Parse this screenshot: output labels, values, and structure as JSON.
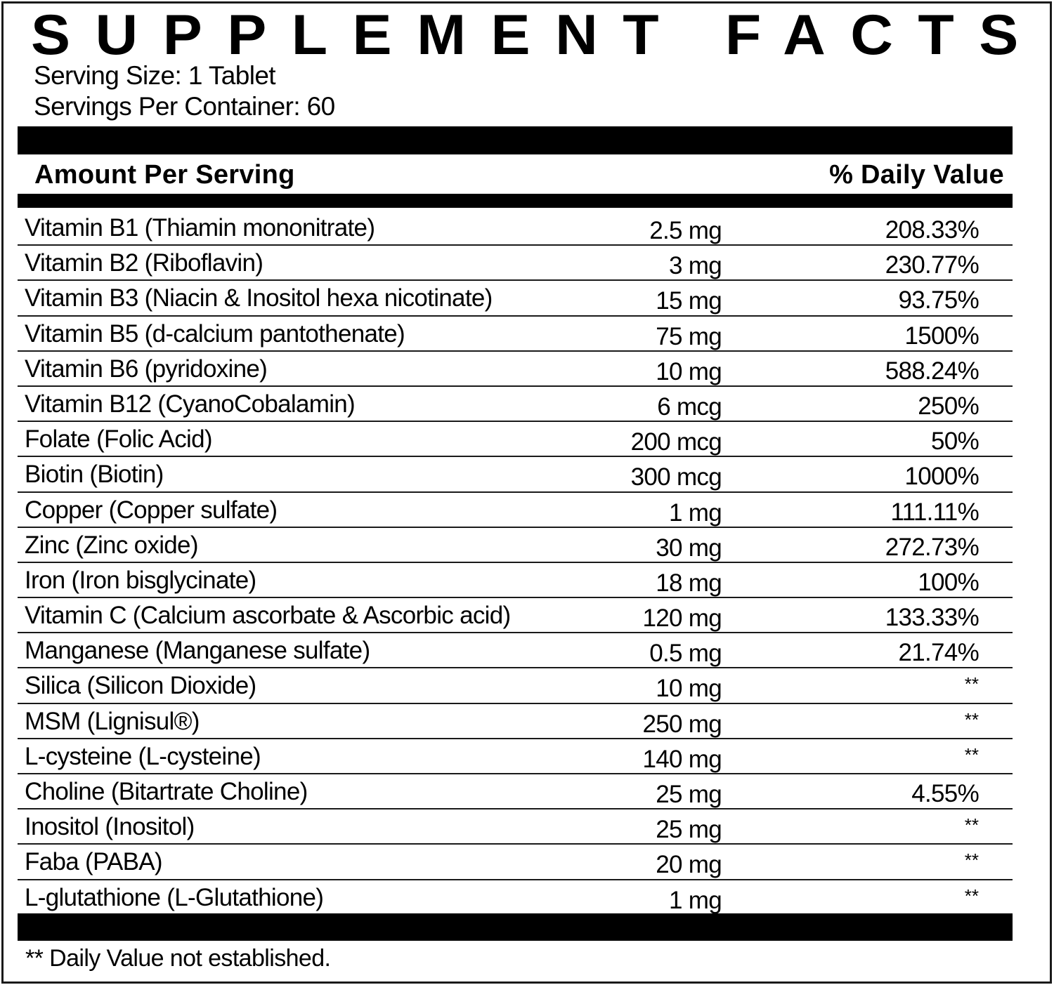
{
  "label": {
    "title": "SUPPLEMENT FACTS",
    "serving_size": "Serving Size: 1 Tablet",
    "servings_per_container": "Servings Per Container: 60",
    "header": {
      "amount_per_serving": "Amount Per Serving",
      "daily_value": "% Daily Value"
    },
    "rows": [
      {
        "name": "Vitamin B1 (Thiamin mononitrate)",
        "amount": "2.5 mg",
        "dv": "208.33%"
      },
      {
        "name": "Vitamin B2 (Riboflavin)",
        "amount": "3 mg",
        "dv": "230.77%"
      },
      {
        "name": "Vitamin B3 (Niacin & Inositol hexa nicotinate)",
        "amount": "15 mg",
        "dv": "93.75%"
      },
      {
        "name": "Vitamin B5 (d-calcium pantothenate)",
        "amount": "75 mg",
        "dv": "1500%"
      },
      {
        "name": "Vitamin B6 (pyridoxine)",
        "amount": "10 mg",
        "dv": "588.24%"
      },
      {
        "name": "Vitamin B12 (CyanoCobalamin)",
        "amount": "6 mcg",
        "dv": "250%"
      },
      {
        "name": "Folate (Folic Acid)",
        "amount": "200 mcg",
        "dv": "50%"
      },
      {
        "name": "Biotin (Biotin)",
        "amount": "300 mcg",
        "dv": "1000%"
      },
      {
        "name": "Copper (Copper sulfate)",
        "amount": "1 mg",
        "dv": "111.11%"
      },
      {
        "name": "Zinc (Zinc oxide)",
        "amount": "30 mg",
        "dv": "272.73%"
      },
      {
        "name": "Iron (Iron bisglycinate)",
        "amount": "18 mg",
        "dv": "100%"
      },
      {
        "name": "Vitamin C (Calcium ascorbate & Ascorbic acid)",
        "amount": "120 mg",
        "dv": "133.33%"
      },
      {
        "name": "Manganese (Manganese sulfate)",
        "amount": "0.5 mg",
        "dv": "21.74%"
      },
      {
        "name": "Silica (Silicon Dioxide)",
        "amount": "10 mg",
        "dv": "**"
      },
      {
        "name": "MSM (Lignisul®)",
        "amount": "250 mg",
        "dv": "**"
      },
      {
        "name": "L-cysteine (L-cysteine)",
        "amount": "140 mg",
        "dv": "**"
      },
      {
        "name": "Choline (Bitartrate Choline)",
        "amount": "25 mg",
        "dv": "4.55%"
      },
      {
        "name": "Inositol (Inositol)",
        "amount": "25 mg",
        "dv": "**"
      },
      {
        "name": "Faba (PABA)",
        "amount": "20 mg",
        "dv": "**"
      },
      {
        "name": "L-glutathione (L-Glutathione)",
        "amount": "1 mg",
        "dv": "**"
      }
    ],
    "footnote": "** Daily Value not established."
  },
  "colors": {
    "ink": "#000000",
    "background": "#ffffff",
    "border": "#1a1a1a"
  }
}
